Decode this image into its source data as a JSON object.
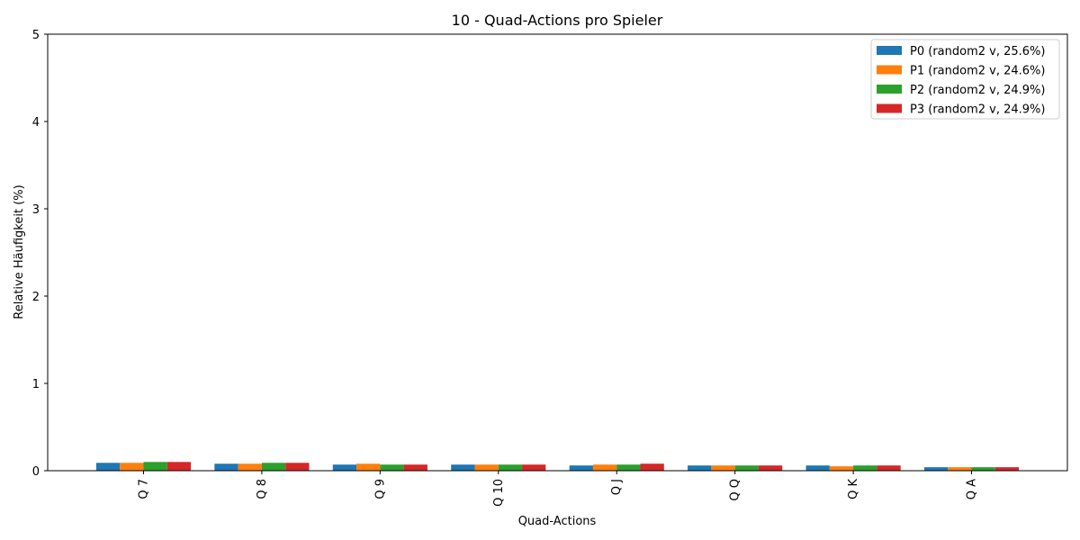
{
  "chart_data": {
    "type": "bar",
    "title": "10 - Quad-Actions pro Spieler",
    "xlabel": "Quad-Actions",
    "ylabel": "Relative Häufigkeit (%)",
    "ylim": [
      0,
      5
    ],
    "yticks": [
      "0",
      "1",
      "2",
      "3",
      "4",
      "5"
    ],
    "categories": [
      "Q 7",
      "Q 8",
      "Q 9",
      "Q 10",
      "Q J",
      "Q Q",
      "Q K",
      "Q A"
    ],
    "grid": false,
    "legend_position": "top-right",
    "series": [
      {
        "name": "P0 (random2 v, 25.6%)",
        "color": "#1f77b4",
        "values": [
          0.09,
          0.08,
          0.07,
          0.07,
          0.06,
          0.06,
          0.06,
          0.04
        ]
      },
      {
        "name": "P1 (random2 v, 24.6%)",
        "color": "#ff7f0e",
        "values": [
          0.09,
          0.08,
          0.08,
          0.07,
          0.07,
          0.06,
          0.05,
          0.04
        ]
      },
      {
        "name": "P2 (random2 v, 24.9%)",
        "color": "#2ca02c",
        "values": [
          0.1,
          0.09,
          0.07,
          0.07,
          0.07,
          0.06,
          0.06,
          0.04
        ]
      },
      {
        "name": "P3 (random2 v, 24.9%)",
        "color": "#d62728",
        "values": [
          0.1,
          0.09,
          0.07,
          0.07,
          0.08,
          0.06,
          0.06,
          0.04
        ]
      }
    ]
  }
}
